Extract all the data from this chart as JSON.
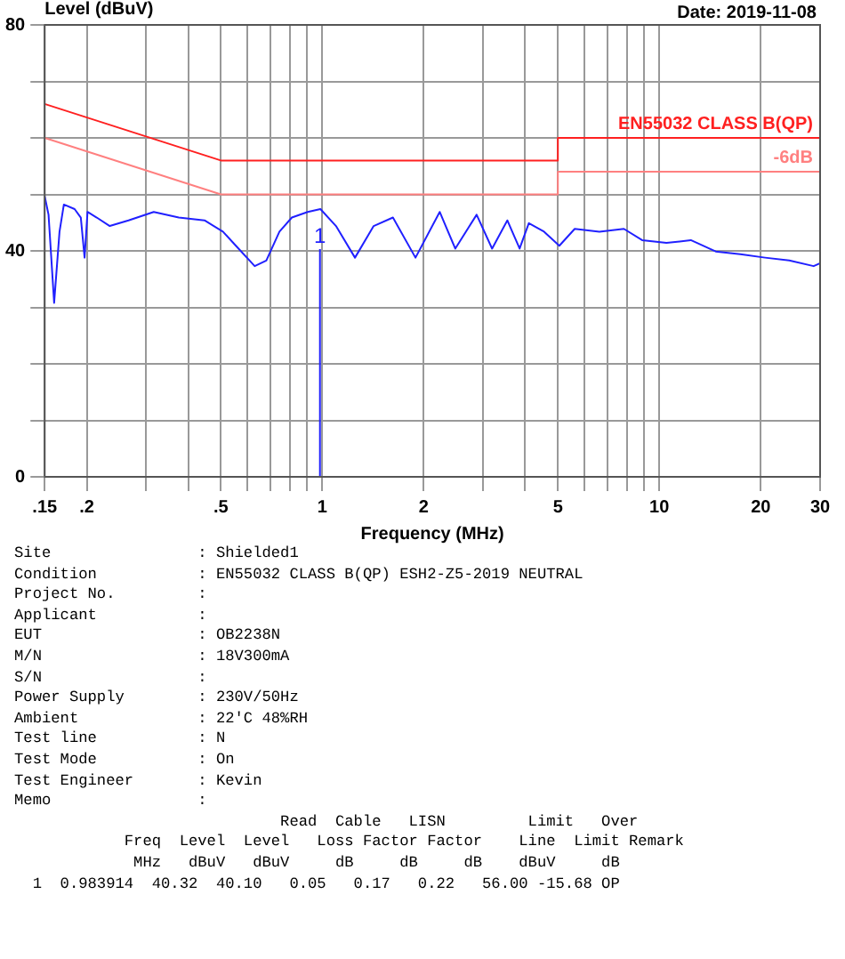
{
  "chart_data": {
    "type": "line",
    "ylabel": "Level (dBuV)",
    "xlabel": "Frequency (MHz)",
    "log": "x",
    "grid": true,
    "legend": false,
    "xlim": [
      0.15,
      30
    ],
    "ylim": [
      0,
      80
    ],
    "xticks": [
      {
        "value": 0.15,
        "label": ".15"
      },
      {
        "value": 0.2,
        "label": ".2"
      },
      {
        "value": 0.3,
        "label": null
      },
      {
        "value": 0.4,
        "label": null
      },
      {
        "value": 0.5,
        "label": ".5"
      },
      {
        "value": 0.6,
        "label": null
      },
      {
        "value": 0.7,
        "label": null
      },
      {
        "value": 0.8,
        "label": null
      },
      {
        "value": 0.9,
        "label": null
      },
      1,
      2,
      {
        "value": 3,
        "label": null
      },
      {
        "value": 4,
        "label": null
      },
      5,
      {
        "value": 6,
        "label": null
      },
      {
        "value": 7,
        "label": null
      },
      {
        "value": 8,
        "label": null
      },
      {
        "value": 9,
        "label": null
      },
      10,
      20,
      30
    ],
    "yticks": [
      0,
      {
        "value": 10,
        "label": null
      },
      {
        "value": 20,
        "label": null
      },
      {
        "value": 30,
        "label": null
      },
      40,
      {
        "value": 50,
        "label": null
      },
      {
        "value": 60,
        "label": null
      },
      {
        "value": 70,
        "label": null
      },
      80
    ],
    "series": [
      {
        "color": "#2020ff",
        "x": [
          0.15,
          0.154,
          0.16,
          0.166,
          0.171,
          0.184,
          0.192,
          0.197,
          0.201,
          0.214,
          0.234,
          0.266,
          0.316,
          0.375,
          0.447,
          0.507,
          0.554,
          0.63,
          0.682,
          0.746,
          0.812,
          0.905,
          0.987,
          1.098,
          1.25,
          1.42,
          1.62,
          1.89,
          2.23,
          2.48,
          2.87,
          3.19,
          3.54,
          3.85,
          4.1,
          4.55,
          5.05,
          5.61,
          6.64,
          7.85,
          8.89,
          10.5,
          12.4,
          14.7,
          17.4,
          20.6,
          24.3,
          28.7,
          30
        ],
        "values": [
          49.7,
          46.4,
          30.8,
          43.4,
          48.2,
          47.4,
          45.9,
          38.8,
          46.9,
          45.9,
          44.4,
          45.4,
          46.9,
          45.9,
          45.4,
          43.4,
          40.9,
          37.3,
          38.3,
          43.4,
          45.9,
          46.9,
          47.4,
          44.4,
          38.8,
          44.4,
          45.9,
          38.8,
          46.9,
          40.4,
          46.4,
          40.4,
          45.4,
          40.4,
          44.9,
          43.4,
          40.9,
          43.9,
          43.4,
          43.9,
          41.9,
          41.4,
          41.9,
          39.9,
          39.4,
          38.8,
          38.3,
          37.3,
          37.8
        ]
      },
      {
        "name": "EN55032 CLASS B(QP)",
        "color": "#ff2020",
        "x": [
          0.15,
          0.5,
          5,
          5,
          30
        ],
        "values": [
          66,
          56,
          56,
          60,
          60
        ]
      },
      {
        "name": "-6dB",
        "color": "#ff8080",
        "x": [
          0.15,
          0.5,
          5,
          5,
          30
        ],
        "values": [
          60,
          50,
          50,
          54,
          54
        ]
      },
      {
        "color": "#2020ff",
        "x": [
          0.983914,
          0.983914
        ],
        "values": [
          0,
          40.32
        ]
      }
    ],
    "annotations": [
      {
        "text": "1",
        "x": 0.983914,
        "y": 40.32
      },
      "Date: 2019-11-08",
      "Site                : Shielded1",
      "Condition           : EN55032 CLASS B(QP) ESH2-Z5-2019 NEUTRAL",
      "Project No.         :",
      "Applicant           :",
      "EUT                 : OB2238N",
      "M/N                 : 18V300mA",
      "S/N                 :",
      "Power Supply        : 230V/50Hz",
      "Ambient             : 22'C 48%RH",
      "Test line           : N",
      "Test Mode           : On",
      "Test Engineer       : Kevin",
      "Memo                :",
      "                             Read  Cable   LISN         Limit   Over",
      "            Freq  Level  Level   Loss Factor Factor    Line  Limit Remark",
      "             MHz   dBuV   dBuV     dB     dB     dB    dBuV     dB",
      "  1  0.983914  40.32  40.10   0.05   0.17   0.22   56.00 -15.68 OP"
    ]
  }
}
